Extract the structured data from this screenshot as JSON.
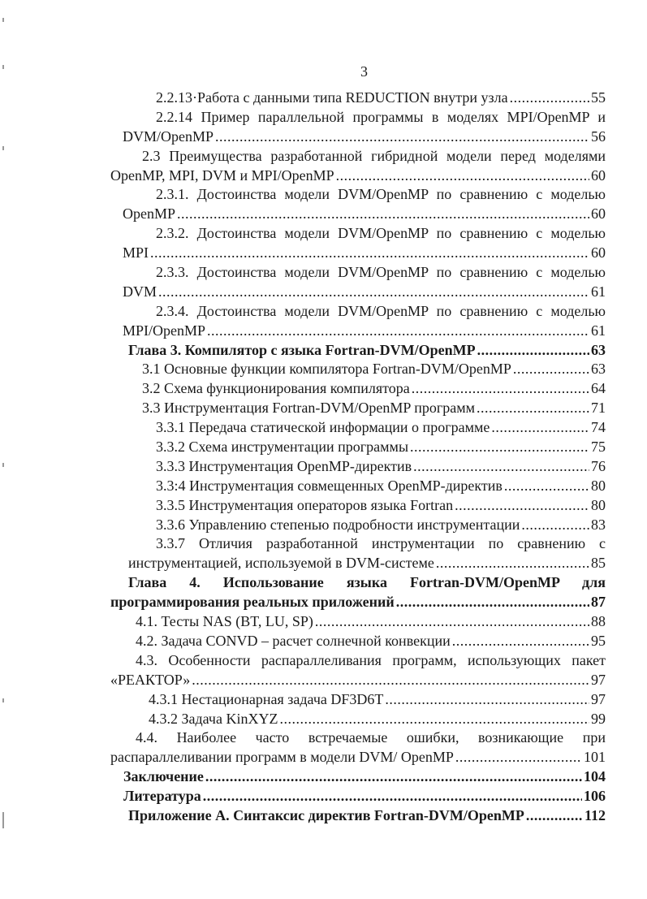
{
  "page_number": "3",
  "toc": [
    {
      "text": "2.2.13·Работа с данными типа REDUCTION внутри узла",
      "page": "55"
    },
    {
      "text": "2.2.14 Пример параллельной программы в моделях MPI/OpenMP и",
      "cont": "DVM/OpenMP",
      "page": "56"
    },
    {
      "text": "2.3 Преимущества разработанной гибридной модели перед моделями",
      "cont": "OpenMP, MPI, DVM и MPI/OpenMP",
      "page": "60"
    },
    {
      "text": "2.3.1. Достоинства модели DVM/OpenMP по сравнению с моделью",
      "cont": "OpenMP",
      "page": "60"
    },
    {
      "text": "2.3.2. Достоинства модели DVM/OpenMP по сравнению с моделью",
      "cont": "MPI",
      "page": "60"
    },
    {
      "text": "2.3.3. Достоинства модели DVM/OpenMP по сравнению с моделью",
      "cont": "DVM",
      "page": "61"
    },
    {
      "text": "2.3.4. Достоинства модели DVM/OpenMP по сравнению с моделью",
      "cont": "MPI/OpenMP",
      "page": "61"
    },
    {
      "text": "Глава 3. Компилятор с языка Fortran-DVM/OpenMP",
      "page": "63",
      "bold": true
    },
    {
      "text": "3.1 Основные функции компилятора Fortran-DVM/OpenMP",
      "page": "63"
    },
    {
      "text": "3.2 Схема функционирования компилятора",
      "page": "64"
    },
    {
      "text": "3.3 Инструментация Fortran-DVM/OpenMP программ",
      "page": "71"
    },
    {
      "text": "3.3.1 Передача статической информации о программе",
      "page": "74"
    },
    {
      "text": "3.3.2 Схема инструментации программы",
      "page": "75"
    },
    {
      "text": "3.3.3 Инструментация OpenMP-директив",
      "page": "76"
    },
    {
      "text": "3.3:4 Инструментация совмещенных OpenMP-директив",
      "page": "80"
    },
    {
      "text": "3.3.5 Инструментация операторов языка Fortran",
      "page": "80"
    },
    {
      "text": "3.3.6 Управлению степенью подробности инструментации",
      "page": "83"
    },
    {
      "text": "3.3.7 Отличия разработанной инструментации по сравнению с",
      "cont": "инструментацией, используемой в DVM-системе",
      "page": "85"
    },
    {
      "text": "Глава 4. Использование языка Fortran-DVM/OpenMP для",
      "cont": "программирования реальных приложений",
      "page": "87",
      "bold": true
    },
    {
      "text": "4.1. Тесты NAS (BT, LU, SP)",
      "page": "88"
    },
    {
      "text": "4.2. Задача CONVD – расчет солнечной конвекции",
      "page": "95"
    },
    {
      "text": "4.3. Особенности распараллеливания программ, использующих пакет",
      "cont": "«РЕАКТОР»",
      "page": "97"
    },
    {
      "text": "4.3.1 Нестационарная задача DF3D6T",
      "page": "97"
    },
    {
      "text": "4.3.2 Задача KinXYZ",
      "page": "99"
    },
    {
      "text": "4.4. Наиболее часто встречаемые ошибки, возникающие при",
      "cont": "распараллеливании программ в модели DVM/ OpenMP",
      "page": "101"
    },
    {
      "text": "Заключение",
      "page": "104",
      "bold": true
    },
    {
      "text": "Литература",
      "page": "106",
      "bold": true
    },
    {
      "text": "Приложение А. Синтаксис директив Fortran-DVM/OpenMP",
      "page": "112",
      "bold": true
    }
  ]
}
